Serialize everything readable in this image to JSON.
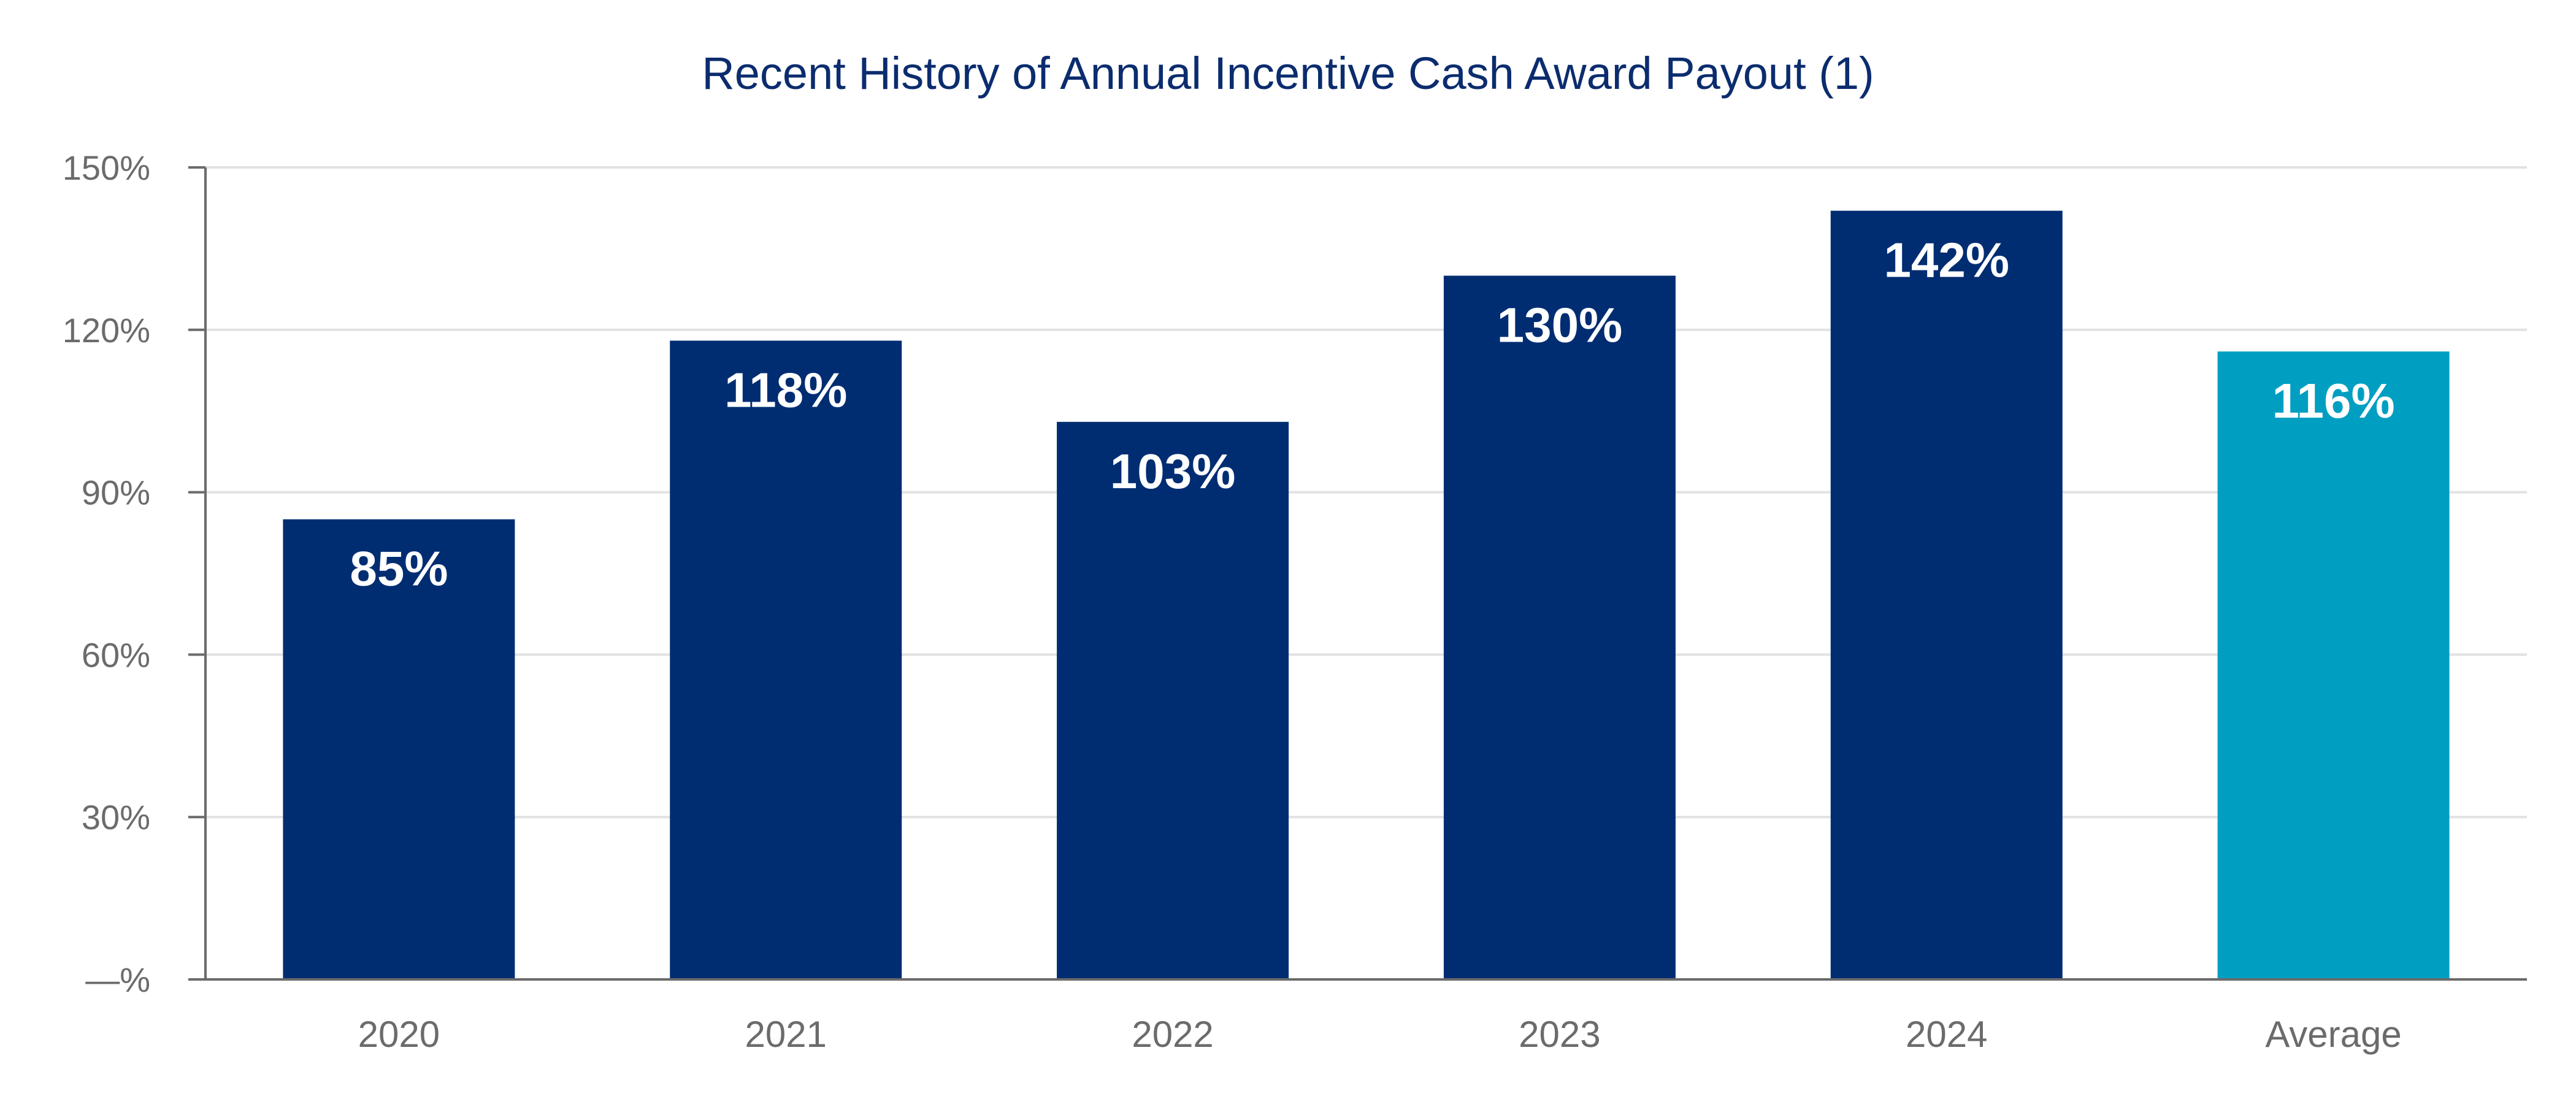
{
  "chart_data": {
    "type": "bar",
    "title": "Recent History of Annual Incentive Cash Award Payout (1)",
    "xlabel": "",
    "ylabel": "",
    "categories": [
      "2020",
      "2021",
      "2022",
      "2023",
      "2024",
      "Average"
    ],
    "values": [
      85,
      118,
      103,
      130,
      142,
      116
    ],
    "data_labels": [
      "85%",
      "118%",
      "103%",
      "130%",
      "142%",
      "116%"
    ],
    "ylim": [
      0,
      150
    ],
    "y_ticks": [
      0,
      30,
      60,
      90,
      120,
      150
    ],
    "y_tick_labels": [
      "—%",
      "30%",
      "60%",
      "90%",
      "120%",
      "150%"
    ],
    "grid": true,
    "legend": "none",
    "colors": {
      "bar": "#002d72",
      "highlight_bar": "#009fc2",
      "title": "#0b2c6e",
      "axis_text": "#6b6b6b"
    },
    "highlight_index": 5
  }
}
